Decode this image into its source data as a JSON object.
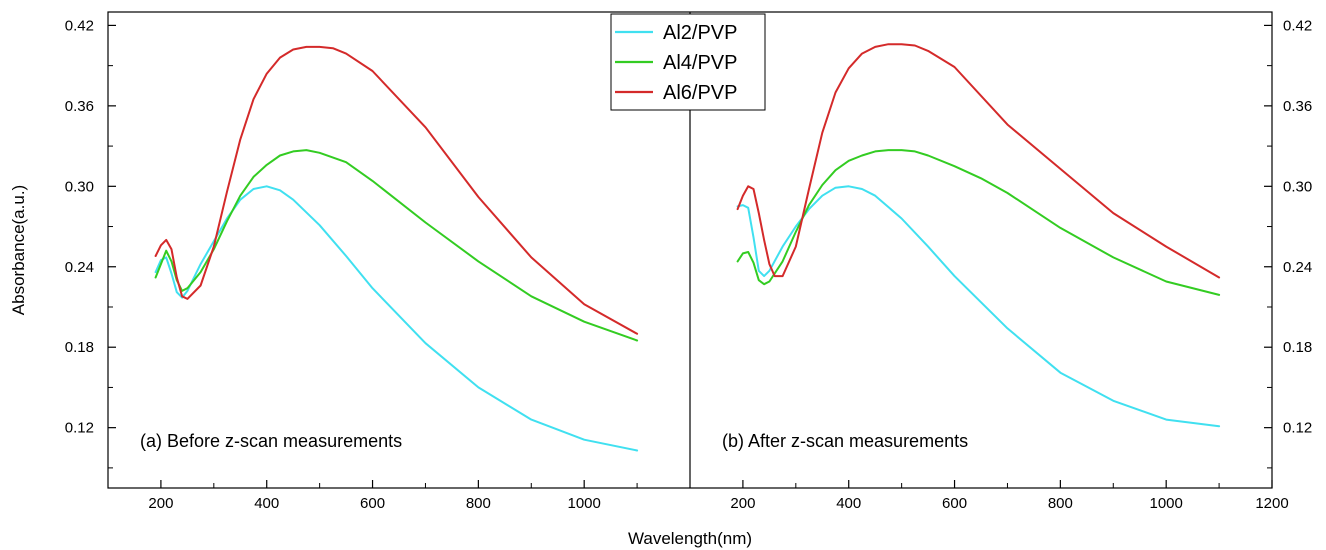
{
  "chart_data": {
    "type": "line",
    "ylabel": "Absorbance(a.u.)",
    "xlabel": "Wavelength(nm)",
    "ylim": [
      0.075,
      0.43
    ],
    "ytick_labels": [
      "0.12",
      "0.18",
      "0.24",
      "0.30",
      "0.36",
      "0.42"
    ],
    "grid": false,
    "legend_placement": "top-center",
    "panels": [
      {
        "annotation": "(a) Before z-scan measurements",
        "xlim": [
          100,
          1200
        ],
        "xtick_labels": [
          "200",
          "400",
          "600",
          "800",
          "1000"
        ],
        "series": [
          {
            "name": "Al2/PVP",
            "color": "#40e0f0",
            "x": [
              190,
              200,
              210,
              220,
              230,
              240,
              250,
              275,
              300,
              325,
              350,
              375,
              400,
              425,
              450,
              500,
              550,
              600,
              700,
              800,
              900,
              1000,
              1100
            ],
            "y": [
              0.236,
              0.245,
              0.247,
              0.235,
              0.221,
              0.217,
              0.222,
              0.242,
              0.259,
              0.276,
              0.29,
              0.298,
              0.3,
              0.297,
              0.29,
              0.271,
              0.248,
              0.224,
              0.183,
              0.15,
              0.126,
              0.111,
              0.103
            ]
          },
          {
            "name": "Al4/PVP",
            "color": "#33cc22",
            "x": [
              190,
              200,
              210,
              220,
              230,
              240,
              250,
              275,
              300,
              325,
              350,
              375,
              400,
              425,
              450,
              475,
              500,
              550,
              600,
              700,
              800,
              900,
              1000,
              1100
            ],
            "y": [
              0.232,
              0.242,
              0.252,
              0.244,
              0.23,
              0.222,
              0.224,
              0.236,
              0.253,
              0.274,
              0.293,
              0.307,
              0.316,
              0.323,
              0.326,
              0.327,
              0.325,
              0.318,
              0.304,
              0.273,
              0.244,
              0.218,
              0.199,
              0.185
            ]
          },
          {
            "name": "Al6/PVP",
            "color": "#d42a2a",
            "x": [
              190,
              200,
              210,
              220,
              230,
              240,
              250,
              275,
              300,
              325,
              350,
              375,
              400,
              425,
              450,
              475,
              500,
              525,
              550,
              600,
              700,
              800,
              900,
              1000,
              1100
            ],
            "y": [
              0.248,
              0.256,
              0.26,
              0.253,
              0.232,
              0.218,
              0.216,
              0.226,
              0.255,
              0.296,
              0.335,
              0.365,
              0.384,
              0.396,
              0.402,
              0.404,
              0.404,
              0.403,
              0.399,
              0.386,
              0.344,
              0.292,
              0.247,
              0.212,
              0.19
            ]
          }
        ]
      },
      {
        "annotation": "(b) After z-scan measurements",
        "xlim": [
          100,
          1200
        ],
        "xtick_labels": [
          "200",
          "400",
          "600",
          "800",
          "1000",
          "1200"
        ],
        "series": [
          {
            "name": "Al2/PVP",
            "color": "#40e0f0",
            "x": [
              190,
              200,
              210,
              220,
              230,
              240,
              250,
              275,
              300,
              325,
              350,
              375,
              400,
              425,
              450,
              500,
              550,
              600,
              700,
              800,
              900,
              1000,
              1100
            ],
            "y": [
              0.285,
              0.286,
              0.284,
              0.262,
              0.237,
              0.233,
              0.237,
              0.255,
              0.27,
              0.283,
              0.293,
              0.299,
              0.3,
              0.298,
              0.293,
              0.276,
              0.255,
              0.233,
              0.194,
              0.161,
              0.14,
              0.126,
              0.121
            ]
          },
          {
            "name": "Al4/PVP",
            "color": "#33cc22",
            "x": [
              190,
              200,
              210,
              220,
              230,
              240,
              250,
              275,
              300,
              325,
              350,
              375,
              400,
              425,
              450,
              475,
              500,
              525,
              550,
              600,
              650,
              700,
              800,
              900,
              1000,
              1100
            ],
            "y": [
              0.244,
              0.25,
              0.251,
              0.243,
              0.23,
              0.227,
              0.229,
              0.244,
              0.266,
              0.286,
              0.301,
              0.312,
              0.319,
              0.323,
              0.326,
              0.327,
              0.327,
              0.326,
              0.323,
              0.315,
              0.306,
              0.295,
              0.269,
              0.247,
              0.229,
              0.219
            ]
          },
          {
            "name": "Al6/PVP",
            "color": "#d42a2a",
            "x": [
              190,
              200,
              210,
              220,
              230,
              240,
              250,
              260,
              275,
              300,
              325,
              350,
              375,
              400,
              425,
              450,
              475,
              500,
              525,
              550,
              600,
              700,
              800,
              900,
              1000,
              1100
            ],
            "y": [
              0.283,
              0.293,
              0.3,
              0.298,
              0.28,
              0.26,
              0.242,
              0.233,
              0.233,
              0.255,
              0.298,
              0.34,
              0.37,
              0.388,
              0.399,
              0.404,
              0.406,
              0.406,
              0.405,
              0.401,
              0.389,
              0.346,
              0.313,
              0.28,
              0.255,
              0.232
            ]
          }
        ]
      }
    ]
  }
}
